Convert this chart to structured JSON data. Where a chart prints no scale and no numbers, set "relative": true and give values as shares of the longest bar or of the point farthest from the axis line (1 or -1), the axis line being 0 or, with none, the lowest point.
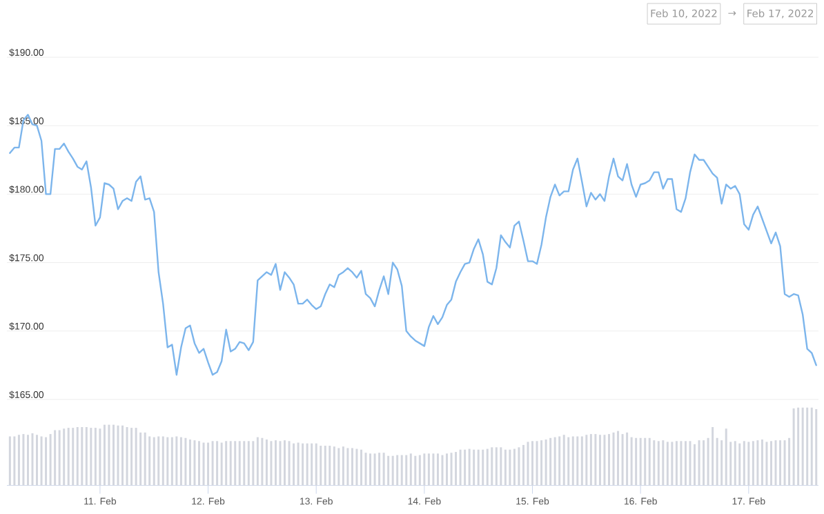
{
  "chart_data": [
    {
      "type": "line",
      "xlim": [
        "2022-02-10T03:20",
        "2022-02-17T15:30"
      ],
      "ylim": [
        165,
        190
      ],
      "tick_labels": "y",
      "grid": "y",
      "yticks": [
        {
          "value": 165,
          "label": "$165.00"
        },
        {
          "value": 170,
          "label": "$170.00"
        },
        {
          "value": 175,
          "label": "$175.00"
        },
        {
          "value": 180,
          "label": "$180.00"
        },
        {
          "value": 185,
          "label": "$185.00"
        },
        {
          "value": 190,
          "label": "$190.00"
        }
      ],
      "annotations": [
        "Feb 10, 2022",
        "→",
        "Feb 17, 2022"
      ],
      "x": [
        "2022-02-10T04:00",
        "2022-02-10T05:00",
        "2022-02-10T06:00",
        "2022-02-10T07:00",
        "2022-02-10T08:00",
        "2022-02-10T09:00",
        "2022-02-10T10:00",
        "2022-02-10T11:00",
        "2022-02-10T12:00",
        "2022-02-10T13:00",
        "2022-02-10T14:00",
        "2022-02-10T15:00",
        "2022-02-10T16:00",
        "2022-02-10T17:00",
        "2022-02-10T18:00",
        "2022-02-10T19:00",
        "2022-02-10T20:00",
        "2022-02-10T21:00",
        "2022-02-10T22:00",
        "2022-02-10T23:00",
        "2022-02-11T00:00",
        "2022-02-11T01:00",
        "2022-02-11T02:00",
        "2022-02-11T03:00",
        "2022-02-11T04:00",
        "2022-02-11T05:00",
        "2022-02-11T06:00",
        "2022-02-11T07:00",
        "2022-02-11T08:00",
        "2022-02-11T09:00",
        "2022-02-11T10:00",
        "2022-02-11T11:00",
        "2022-02-11T12:00",
        "2022-02-11T13:00",
        "2022-02-11T14:00",
        "2022-02-11T15:00",
        "2022-02-11T16:00",
        "2022-02-11T17:00",
        "2022-02-11T18:00",
        "2022-02-11T19:00",
        "2022-02-11T20:00",
        "2022-02-11T21:00",
        "2022-02-11T22:00",
        "2022-02-11T23:00",
        "2022-02-12T00:00",
        "2022-02-12T01:00",
        "2022-02-12T02:00",
        "2022-02-12T03:00",
        "2022-02-12T04:00",
        "2022-02-12T05:00",
        "2022-02-12T06:00",
        "2022-02-12T07:00",
        "2022-02-12T08:00",
        "2022-02-12T09:00",
        "2022-02-12T10:00",
        "2022-02-12T11:00",
        "2022-02-12T12:00",
        "2022-02-12T13:00",
        "2022-02-12T14:00",
        "2022-02-12T15:00",
        "2022-02-12T16:00",
        "2022-02-12T17:00",
        "2022-02-12T18:00",
        "2022-02-12T19:00",
        "2022-02-12T20:00",
        "2022-02-12T21:00",
        "2022-02-12T22:00",
        "2022-02-12T23:00",
        "2022-02-13T00:00",
        "2022-02-13T01:00",
        "2022-02-13T02:00",
        "2022-02-13T03:00",
        "2022-02-13T04:00",
        "2022-02-13T05:00",
        "2022-02-13T06:00",
        "2022-02-13T07:00",
        "2022-02-13T08:00",
        "2022-02-13T09:00",
        "2022-02-13T10:00",
        "2022-02-13T11:00",
        "2022-02-13T12:00",
        "2022-02-13T13:00",
        "2022-02-13T14:00",
        "2022-02-13T15:00",
        "2022-02-13T16:00",
        "2022-02-13T17:00",
        "2022-02-13T18:00",
        "2022-02-13T19:00",
        "2022-02-13T20:00",
        "2022-02-13T21:00",
        "2022-02-13T22:00",
        "2022-02-13T23:00",
        "2022-02-14T00:00",
        "2022-02-14T01:00",
        "2022-02-14T02:00",
        "2022-02-14T03:00",
        "2022-02-14T04:00",
        "2022-02-14T05:00",
        "2022-02-14T06:00",
        "2022-02-14T07:00",
        "2022-02-14T08:00",
        "2022-02-14T09:00",
        "2022-02-14T10:00",
        "2022-02-14T11:00",
        "2022-02-14T12:00",
        "2022-02-14T13:00",
        "2022-02-14T14:00",
        "2022-02-14T15:00",
        "2022-02-14T16:00",
        "2022-02-14T17:00",
        "2022-02-14T18:00",
        "2022-02-14T19:00",
        "2022-02-14T20:00",
        "2022-02-14T21:00",
        "2022-02-14T22:00",
        "2022-02-14T23:00",
        "2022-02-15T00:00",
        "2022-02-15T01:00",
        "2022-02-15T02:00",
        "2022-02-15T03:00",
        "2022-02-15T04:00",
        "2022-02-15T05:00",
        "2022-02-15T06:00",
        "2022-02-15T07:00",
        "2022-02-15T08:00",
        "2022-02-15T09:00",
        "2022-02-15T10:00",
        "2022-02-15T11:00",
        "2022-02-15T12:00",
        "2022-02-15T13:00",
        "2022-02-15T14:00",
        "2022-02-15T15:00",
        "2022-02-15T16:00",
        "2022-02-15T17:00",
        "2022-02-15T18:00",
        "2022-02-15T19:00",
        "2022-02-15T20:00",
        "2022-02-15T21:00",
        "2022-02-15T22:00",
        "2022-02-15T23:00",
        "2022-02-16T00:00",
        "2022-02-16T01:00",
        "2022-02-16T02:00",
        "2022-02-16T03:00",
        "2022-02-16T04:00",
        "2022-02-16T05:00",
        "2022-02-16T06:00",
        "2022-02-16T07:00",
        "2022-02-16T08:00",
        "2022-02-16T09:00",
        "2022-02-16T10:00",
        "2022-02-16T11:00",
        "2022-02-16T12:00",
        "2022-02-16T13:00",
        "2022-02-16T14:00",
        "2022-02-16T15:00",
        "2022-02-16T16:00",
        "2022-02-16T17:00",
        "2022-02-16T18:00",
        "2022-02-16T19:00",
        "2022-02-16T20:00",
        "2022-02-16T21:00",
        "2022-02-16T22:00",
        "2022-02-16T23:00",
        "2022-02-17T00:00",
        "2022-02-17T01:00",
        "2022-02-17T02:00",
        "2022-02-17T03:00",
        "2022-02-17T04:00",
        "2022-02-17T05:00",
        "2022-02-17T06:00",
        "2022-02-17T07:00",
        "2022-02-17T08:00",
        "2022-02-17T09:00",
        "2022-02-17T10:00",
        "2022-02-17T11:00",
        "2022-02-17T12:00",
        "2022-02-17T13:00",
        "2022-02-17T14:00",
        "2022-02-17T15:00"
      ],
      "series": [
        {
          "color": "#7cb5ec",
          "values": [
            183.0,
            183.4,
            183.4,
            185.4,
            185.8,
            185.1,
            185.0,
            183.9,
            180.0,
            180.0,
            183.3,
            183.3,
            183.7,
            183.1,
            182.6,
            182.0,
            181.8,
            182.4,
            180.5,
            177.7,
            178.3,
            180.8,
            180.7,
            180.4,
            178.9,
            179.5,
            179.7,
            179.5,
            180.9,
            181.3,
            179.6,
            179.7,
            178.7,
            174.3,
            172.0,
            168.8,
            169.0,
            166.8,
            168.8,
            170.2,
            170.4,
            169.1,
            168.4,
            168.7,
            167.7,
            166.8,
            167.0,
            167.8,
            170.1,
            168.5,
            168.7,
            169.2,
            169.1,
            168.6,
            169.2,
            173.7,
            174.0,
            174.3,
            174.1,
            174.9,
            173.0,
            174.3,
            173.9,
            173.4,
            172.0,
            172.0,
            172.3,
            171.9,
            171.6,
            171.8,
            172.7,
            173.4,
            173.2,
            174.1,
            174.3,
            174.6,
            174.3,
            173.9,
            174.4,
            172.7,
            172.4,
            171.8,
            173.0,
            174.0,
            172.7,
            175.0,
            174.5,
            173.3,
            170.0,
            169.6,
            169.3,
            169.1,
            168.9,
            170.3,
            171.1,
            170.5,
            171.0,
            171.9,
            172.3,
            173.6,
            174.3,
            174.9,
            175.0,
            176.0,
            176.7,
            175.6,
            173.6,
            173.4,
            174.6,
            177.0,
            176.5,
            176.1,
            177.7,
            178.0,
            176.6,
            175.1,
            175.1,
            174.9,
            176.3,
            178.3,
            179.8,
            180.7,
            179.9,
            180.2,
            180.2,
            181.8,
            182.6,
            180.9,
            179.1,
            180.1,
            179.6,
            180.0,
            179.5,
            181.3,
            182.6,
            181.3,
            181.0,
            182.2,
            180.7,
            179.8,
            180.7,
            180.8,
            181.0,
            181.6,
            181.6,
            180.4,
            181.1,
            181.1,
            178.9,
            178.7,
            179.7,
            181.6,
            182.9,
            182.5,
            182.5,
            182.0,
            181.5,
            181.2,
            179.3,
            180.7,
            180.4,
            180.6,
            180.0,
            177.8,
            177.4,
            178.5,
            179.1,
            178.2,
            177.3,
            176.4,
            177.2,
            176.2,
            172.7,
            172.5,
            172.7,
            172.6,
            171.2,
            168.7,
            168.4,
            167.5
          ]
        }
      ]
    },
    {
      "type": "bar",
      "relative": true,
      "color": "#d3d6de",
      "xlim": [
        "2022-02-10T03:20",
        "2022-02-17T15:30"
      ],
      "tick_labels": "x",
      "xticks": [
        {
          "value": "2022-02-11",
          "label": "11. Feb"
        },
        {
          "value": "2022-02-12",
          "label": "12. Feb"
        },
        {
          "value": "2022-02-13",
          "label": "13. Feb"
        },
        {
          "value": "2022-02-14",
          "label": "14. Feb"
        },
        {
          "value": "2022-02-15",
          "label": "15. Feb"
        },
        {
          "value": "2022-02-16",
          "label": "16. Feb"
        },
        {
          "value": "2022-02-17",
          "label": "17. Feb"
        }
      ],
      "x": [
        "2022-02-10T04:00",
        "2022-02-10T05:00",
        "2022-02-10T06:00",
        "2022-02-10T07:00",
        "2022-02-10T08:00",
        "2022-02-10T09:00",
        "2022-02-10T10:00",
        "2022-02-10T11:00",
        "2022-02-10T12:00",
        "2022-02-10T13:00",
        "2022-02-10T14:00",
        "2022-02-10T15:00",
        "2022-02-10T16:00",
        "2022-02-10T17:00",
        "2022-02-10T18:00",
        "2022-02-10T19:00",
        "2022-02-10T20:00",
        "2022-02-10T21:00",
        "2022-02-10T22:00",
        "2022-02-10T23:00",
        "2022-02-11T00:00",
        "2022-02-11T01:00",
        "2022-02-11T02:00",
        "2022-02-11T03:00",
        "2022-02-11T04:00",
        "2022-02-11T05:00",
        "2022-02-11T06:00",
        "2022-02-11T07:00",
        "2022-02-11T08:00",
        "2022-02-11T09:00",
        "2022-02-11T10:00",
        "2022-02-11T11:00",
        "2022-02-11T12:00",
        "2022-02-11T13:00",
        "2022-02-11T14:00",
        "2022-02-11T15:00",
        "2022-02-11T16:00",
        "2022-02-11T17:00",
        "2022-02-11T18:00",
        "2022-02-11T19:00",
        "2022-02-11T20:00",
        "2022-02-11T21:00",
        "2022-02-11T22:00",
        "2022-02-11T23:00",
        "2022-02-12T00:00",
        "2022-02-12T01:00",
        "2022-02-12T02:00",
        "2022-02-12T03:00",
        "2022-02-12T04:00",
        "2022-02-12T05:00",
        "2022-02-12T06:00",
        "2022-02-12T07:00",
        "2022-02-12T08:00",
        "2022-02-12T09:00",
        "2022-02-12T10:00",
        "2022-02-12T11:00",
        "2022-02-12T12:00",
        "2022-02-12T13:00",
        "2022-02-12T14:00",
        "2022-02-12T15:00",
        "2022-02-12T16:00",
        "2022-02-12T17:00",
        "2022-02-12T18:00",
        "2022-02-12T19:00",
        "2022-02-12T20:00",
        "2022-02-12T21:00",
        "2022-02-12T22:00",
        "2022-02-12T23:00",
        "2022-02-13T00:00",
        "2022-02-13T01:00",
        "2022-02-13T02:00",
        "2022-02-13T03:00",
        "2022-02-13T04:00",
        "2022-02-13T05:00",
        "2022-02-13T06:00",
        "2022-02-13T07:00",
        "2022-02-13T08:00",
        "2022-02-13T09:00",
        "2022-02-13T10:00",
        "2022-02-13T11:00",
        "2022-02-13T12:00",
        "2022-02-13T13:00",
        "2022-02-13T14:00",
        "2022-02-13T15:00",
        "2022-02-13T16:00",
        "2022-02-13T17:00",
        "2022-02-13T18:00",
        "2022-02-13T19:00",
        "2022-02-13T20:00",
        "2022-02-13T21:00",
        "2022-02-13T22:00",
        "2022-02-13T23:00",
        "2022-02-14T00:00",
        "2022-02-14T01:00",
        "2022-02-14T02:00",
        "2022-02-14T03:00",
        "2022-02-14T04:00",
        "2022-02-14T05:00",
        "2022-02-14T06:00",
        "2022-02-14T07:00",
        "2022-02-14T08:00",
        "2022-02-14T09:00",
        "2022-02-14T10:00",
        "2022-02-14T11:00",
        "2022-02-14T12:00",
        "2022-02-14T13:00",
        "2022-02-14T14:00",
        "2022-02-14T15:00",
        "2022-02-14T16:00",
        "2022-02-14T17:00",
        "2022-02-14T18:00",
        "2022-02-14T19:00",
        "2022-02-14T20:00",
        "2022-02-14T21:00",
        "2022-02-14T22:00",
        "2022-02-14T23:00",
        "2022-02-15T00:00",
        "2022-02-15T01:00",
        "2022-02-15T02:00",
        "2022-02-15T03:00",
        "2022-02-15T04:00",
        "2022-02-15T05:00",
        "2022-02-15T06:00",
        "2022-02-15T07:00",
        "2022-02-15T08:00",
        "2022-02-15T09:00",
        "2022-02-15T10:00",
        "2022-02-15T11:00",
        "2022-02-15T12:00",
        "2022-02-15T13:00",
        "2022-02-15T14:00",
        "2022-02-15T15:00",
        "2022-02-15T16:00",
        "2022-02-15T17:00",
        "2022-02-15T18:00",
        "2022-02-15T19:00",
        "2022-02-15T20:00",
        "2022-02-15T21:00",
        "2022-02-15T22:00",
        "2022-02-15T23:00",
        "2022-02-16T00:00",
        "2022-02-16T01:00",
        "2022-02-16T02:00",
        "2022-02-16T03:00",
        "2022-02-16T04:00",
        "2022-02-16T05:00",
        "2022-02-16T06:00",
        "2022-02-16T07:00",
        "2022-02-16T08:00",
        "2022-02-16T09:00",
        "2022-02-16T10:00",
        "2022-02-16T11:00",
        "2022-02-16T12:00",
        "2022-02-16T13:00",
        "2022-02-16T14:00",
        "2022-02-16T15:00",
        "2022-02-16T16:00",
        "2022-02-16T17:00",
        "2022-02-16T18:00",
        "2022-02-16T19:00",
        "2022-02-16T20:00",
        "2022-02-16T21:00",
        "2022-02-16T22:00",
        "2022-02-16T23:00",
        "2022-02-17T00:00",
        "2022-02-17T01:00",
        "2022-02-17T02:00",
        "2022-02-17T03:00",
        "2022-02-17T04:00",
        "2022-02-17T05:00",
        "2022-02-17T06:00",
        "2022-02-17T07:00",
        "2022-02-17T08:00",
        "2022-02-17T09:00",
        "2022-02-17T10:00",
        "2022-02-17T11:00",
        "2022-02-17T12:00",
        "2022-02-17T13:00",
        "2022-02-17T14:00",
        "2022-02-17T15:00"
      ],
      "values": [
        0.63,
        0.63,
        0.65,
        0.66,
        0.65,
        0.67,
        0.65,
        0.63,
        0.62,
        0.66,
        0.71,
        0.71,
        0.73,
        0.74,
        0.74,
        0.75,
        0.75,
        0.75,
        0.74,
        0.74,
        0.73,
        0.78,
        0.78,
        0.78,
        0.77,
        0.77,
        0.75,
        0.74,
        0.74,
        0.68,
        0.68,
        0.63,
        0.62,
        0.63,
        0.63,
        0.62,
        0.62,
        0.63,
        0.62,
        0.61,
        0.59,
        0.58,
        0.57,
        0.55,
        0.55,
        0.57,
        0.57,
        0.55,
        0.57,
        0.57,
        0.57,
        0.57,
        0.57,
        0.57,
        0.57,
        0.62,
        0.61,
        0.59,
        0.57,
        0.58,
        0.57,
        0.58,
        0.57,
        0.54,
        0.55,
        0.54,
        0.54,
        0.54,
        0.54,
        0.51,
        0.51,
        0.51,
        0.5,
        0.48,
        0.5,
        0.48,
        0.48,
        0.47,
        0.46,
        0.42,
        0.41,
        0.41,
        0.42,
        0.42,
        0.38,
        0.38,
        0.39,
        0.39,
        0.39,
        0.41,
        0.38,
        0.39,
        0.41,
        0.41,
        0.41,
        0.41,
        0.39,
        0.41,
        0.42,
        0.43,
        0.46,
        0.46,
        0.47,
        0.46,
        0.46,
        0.46,
        0.47,
        0.49,
        0.49,
        0.49,
        0.46,
        0.46,
        0.47,
        0.49,
        0.52,
        0.56,
        0.57,
        0.57,
        0.58,
        0.59,
        0.61,
        0.62,
        0.63,
        0.65,
        0.62,
        0.63,
        0.63,
        0.63,
        0.65,
        0.66,
        0.66,
        0.65,
        0.65,
        0.66,
        0.68,
        0.7,
        0.66,
        0.68,
        0.62,
        0.61,
        0.61,
        0.61,
        0.61,
        0.58,
        0.57,
        0.58,
        0.56,
        0.56,
        0.57,
        0.57,
        0.57,
        0.57,
        0.53,
        0.58,
        0.58,
        0.61,
        0.75,
        0.61,
        0.58,
        0.73,
        0.56,
        0.57,
        0.54,
        0.57,
        0.56,
        0.57,
        0.58,
        0.59,
        0.56,
        0.57,
        0.58,
        0.58,
        0.58,
        0.61,
        0.99,
        1,
        1,
        1,
        1,
        0.98
      ]
    }
  ]
}
